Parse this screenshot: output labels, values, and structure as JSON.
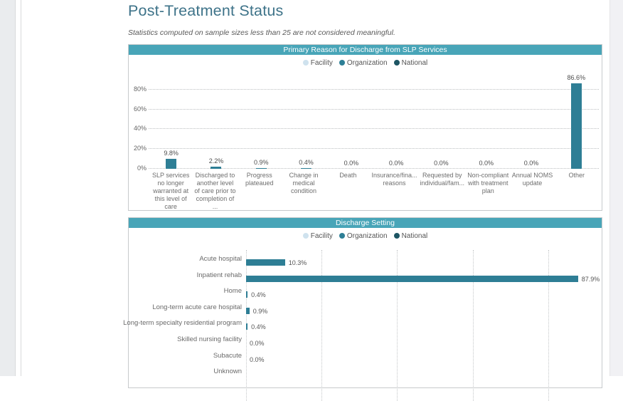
{
  "page": {
    "title": "Post-Treatment Status",
    "note": "Statistics computed on sample sizes less than 25 are not considered meaningful."
  },
  "legend": {
    "items": [
      {
        "label": "Facility",
        "color": "#cfe2ee"
      },
      {
        "label": "Organization",
        "color": "#2e7f96"
      },
      {
        "label": "National",
        "color": "#1d5563"
      }
    ]
  },
  "colors": {
    "bar": "#2e7e95",
    "header": "#48a5b8",
    "title_text": "#3e7389"
  },
  "chart_data": [
    {
      "type": "bar",
      "title": "Primary Reason for Discharge from SLP Services",
      "legend": [
        "Facility",
        "Organization",
        "National"
      ],
      "legend_position": "top",
      "grid": true,
      "ylim": [
        0,
        90
      ],
      "ytick_values": [
        80,
        60,
        40,
        20,
        0
      ],
      "ytick_labels": [
        "80%",
        "60%",
        "40%",
        "20%",
        "0%"
      ],
      "categories": [
        "SLP services no longer warranted at this level of care",
        "Discharged to another level of care prior to completion of ...",
        "Progress plateaued",
        "Change in medical condition",
        "Death",
        "Insurance/fina... reasons",
        "Requested by individual/fam...",
        "Non-compliant with treatment plan",
        "Annual NOMS update",
        "Other"
      ],
      "values": [
        9.8,
        2.2,
        0.9,
        0.4,
        0.0,
        0.0,
        0.0,
        0.0,
        0.0,
        86.6
      ],
      "value_labels": [
        "9.8%",
        "2.2%",
        "0.9%",
        "0.4%",
        "0.0%",
        "0.0%",
        "0.0%",
        "0.0%",
        "0.0%",
        "86.6%"
      ]
    },
    {
      "type": "bar",
      "orientation": "horizontal",
      "title": "Discharge Setting",
      "legend": [
        "Facility",
        "Organization",
        "National"
      ],
      "legend_position": "top",
      "grid": true,
      "xlim": [
        0,
        100
      ],
      "xtick_values": [
        0,
        20,
        40,
        60,
        80
      ],
      "categories": [
        "Acute hospital",
        "Inpatient rehab",
        "Home",
        "Long-term acute care hospital",
        "Long-term specialty residential program",
        "Skilled nursing facility",
        "Subacute",
        "Unknown"
      ],
      "values": [
        10.3,
        87.9,
        0.4,
        0.9,
        0.4,
        0.0,
        0.0,
        null
      ],
      "value_labels": [
        "10.3%",
        "87.9%",
        "0.4%",
        "0.9%",
        "0.4%",
        "0.0%",
        "0.0%",
        ""
      ]
    }
  ]
}
